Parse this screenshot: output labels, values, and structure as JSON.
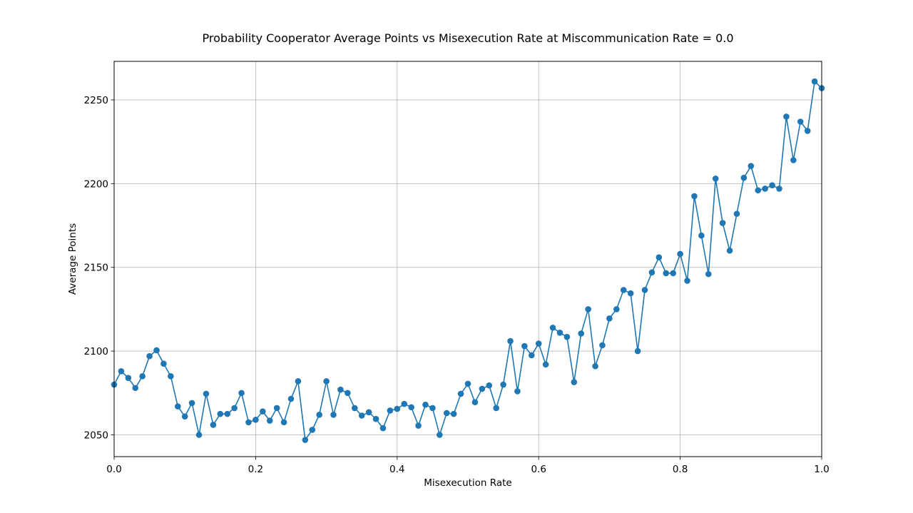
{
  "chart_data": {
    "type": "line",
    "title": "Probability Cooperator Average Points vs Misexecution Rate at Miscommunication Rate = 0.0",
    "xlabel": "Misexecution Rate",
    "ylabel": "Average Points",
    "xlim": [
      0.0,
      1.0
    ],
    "ylim": [
      2037,
      2273
    ],
    "xticks": [
      0.0,
      0.2,
      0.4,
      0.6,
      0.8,
      1.0
    ],
    "xtick_labels": [
      "0.0",
      "0.2",
      "0.4",
      "0.6",
      "0.8",
      "1.0"
    ],
    "yticks": [
      2050,
      2100,
      2150,
      2200,
      2250
    ],
    "ytick_labels": [
      "2050",
      "2100",
      "2150",
      "2200",
      "2250"
    ],
    "grid": true,
    "marker": "circle",
    "color": "#1f77b4",
    "x": [
      0.0,
      0.01,
      0.02,
      0.03,
      0.04,
      0.05,
      0.06,
      0.07,
      0.08,
      0.09,
      0.1,
      0.11,
      0.12,
      0.13,
      0.14,
      0.15,
      0.16,
      0.17,
      0.18,
      0.19,
      0.2,
      0.21,
      0.22,
      0.23,
      0.24,
      0.25,
      0.26,
      0.27,
      0.28,
      0.29,
      0.3,
      0.31,
      0.32,
      0.33,
      0.34,
      0.35,
      0.36,
      0.37,
      0.38,
      0.39,
      0.4,
      0.41,
      0.42,
      0.43,
      0.44,
      0.45,
      0.46,
      0.47,
      0.48,
      0.49,
      0.5,
      0.51,
      0.52,
      0.53,
      0.54,
      0.55,
      0.56,
      0.57,
      0.58,
      0.59,
      0.6,
      0.61,
      0.62,
      0.63,
      0.64,
      0.65,
      0.66,
      0.67,
      0.68,
      0.69,
      0.7,
      0.71,
      0.72,
      0.73,
      0.74,
      0.75,
      0.76,
      0.77,
      0.78,
      0.79,
      0.8,
      0.81,
      0.82,
      0.83,
      0.84,
      0.85,
      0.86,
      0.87,
      0.88,
      0.89,
      0.9,
      0.91,
      0.92,
      0.93,
      0.94,
      0.95,
      0.96,
      0.97,
      0.98,
      0.99,
      1.0
    ],
    "y": [
      2080,
      2088,
      2084,
      2078,
      2085,
      2097,
      2100.5,
      2092.5,
      2085,
      2067,
      2061,
      2069,
      2050,
      2074.5,
      2056,
      2062.5,
      2062.5,
      2066,
      2075,
      2057.5,
      2059,
      2064,
      2058.5,
      2066,
      2057.5,
      2071.5,
      2082,
      2047,
      2053,
      2062,
      2082,
      2062,
      2077,
      2075,
      2066,
      2061.5,
      2063.5,
      2059.5,
      2054,
      2064.5,
      2065.5,
      2068.5,
      2066.5,
      2055.5,
      2068,
      2066,
      2050,
      2063,
      2062.5,
      2074.5,
      2080.5,
      2069.5,
      2077.5,
      2079.5,
      2066,
      2080,
      2106,
      2076,
      2103,
      2097.5,
      2104.5,
      2092,
      2114,
      2111,
      2108.5,
      2081.5,
      2110.5,
      2125,
      2091,
      2103.5,
      2119.5,
      2125,
      2136.5,
      2134.5,
      2100,
      2136.5,
      2147,
      2156,
      2146.5,
      2146.5,
      2158,
      2142,
      2192.5,
      2169,
      2146,
      2203,
      2176.5,
      2160,
      2182,
      2203.5,
      2210.5,
      2196,
      2197,
      2199,
      2197,
      2240,
      2214,
      2237,
      2231.5,
      2261,
      2257
    ]
  }
}
